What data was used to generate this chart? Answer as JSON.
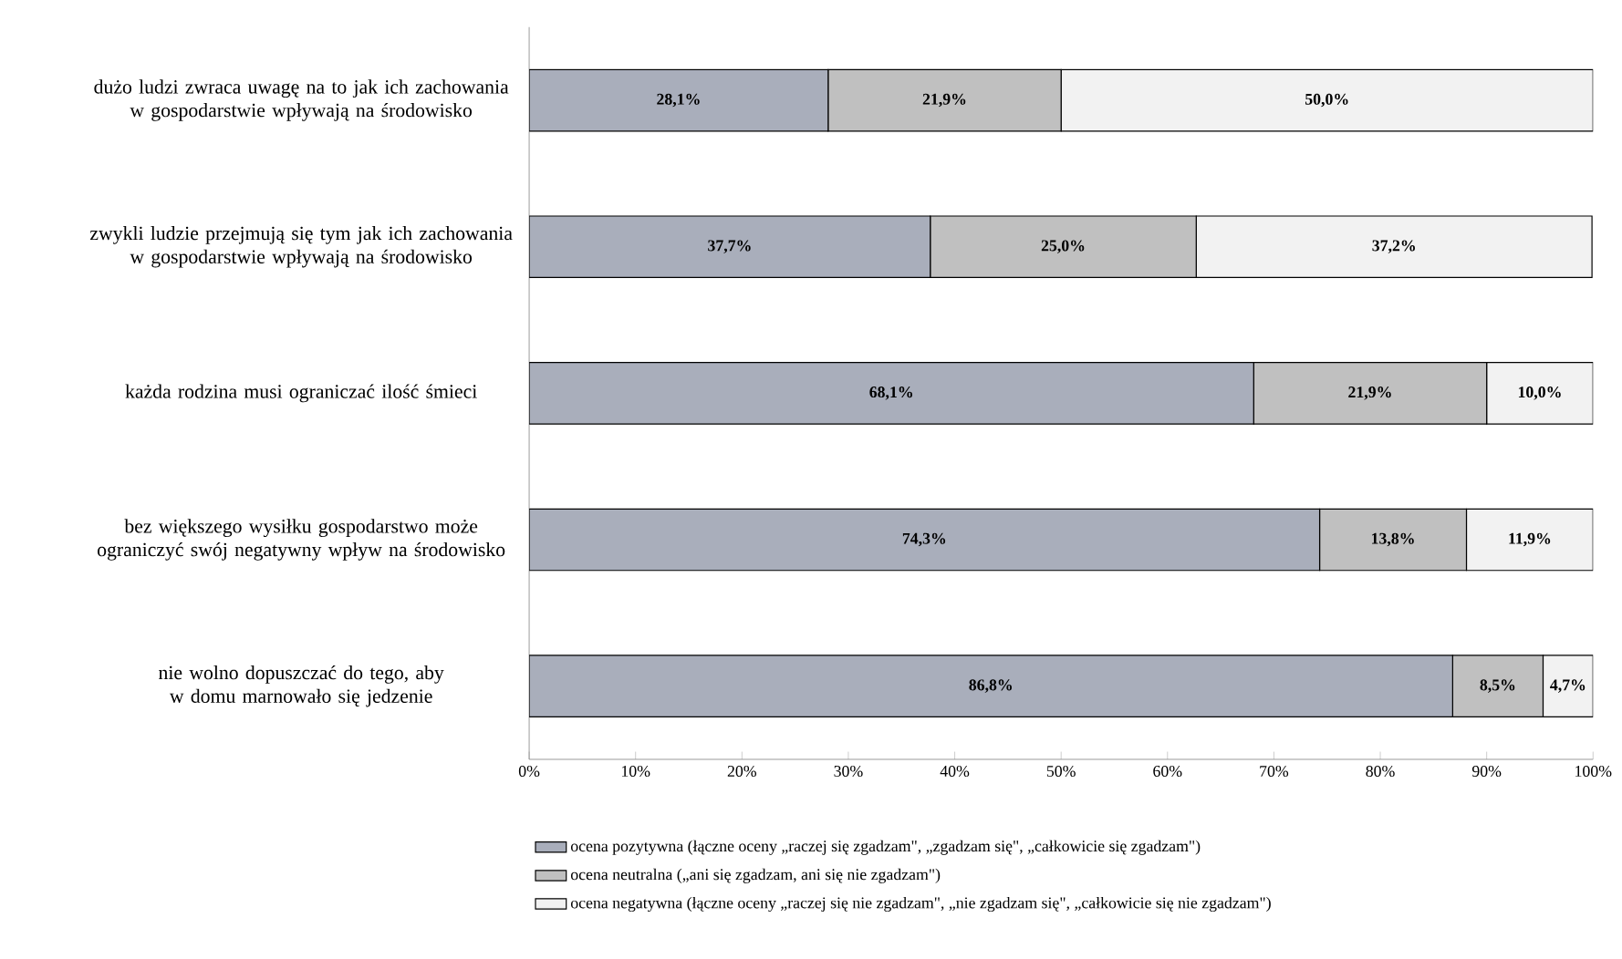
{
  "chart_data": {
    "type": "bar",
    "orientation": "horizontal",
    "stacked": true,
    "categories": [
      "dużo ludzi zwraca uwagę na to jak ich zachowania w gospodarstwie wpływają na środowisko",
      "zwykli ludzie przejmują się tym jak ich zachowania w gospodarstwie wpływają na środowisko",
      "każda rodzina musi ograniczać ilość śmieci",
      "bez większego wysiłku gospodarstwo może ograniczyć swój negatywny wpływ na środowisko",
      "nie wolno dopuszczać do tego, aby w domu marnowało się jedzenie"
    ],
    "series": [
      {
        "name": "ocena pozytywna (łączne oceny „raczej się zgadzam\", „zgadzam się\",  „całkowicie się zgadzam\")",
        "color": "#a9aebb",
        "values": [
          28.1,
          37.7,
          68.1,
          74.3,
          86.8
        ],
        "value_labels": [
          "28,1%",
          "37,7%",
          "68,1%",
          "74,3%",
          "86,8%"
        ]
      },
      {
        "name": "ocena neutralna („ani się zgadzam, ani się nie zgadzam\")",
        "color": "#c0c0c0",
        "values": [
          21.9,
          25.0,
          21.9,
          13.8,
          8.5
        ],
        "value_labels": [
          "21,9%",
          "25,0%",
          "21,9%",
          "13,8%",
          "8,5%"
        ]
      },
      {
        "name": "ocena negatywna (łączne oceny „raczej się nie zgadzam\", „nie zgadzam się\",  „całkowicie się nie zgadzam\")",
        "color": "#f2f2f2",
        "values": [
          50.0,
          37.2,
          10.0,
          11.9,
          4.7
        ],
        "value_labels": [
          "50,0%",
          "37,2%",
          "10,0%",
          "11,9%",
          "4,7%"
        ]
      }
    ],
    "xlim": [
      0,
      100
    ],
    "xticks": [
      {
        "value": 0,
        "label": "0%"
      },
      {
        "value": 10,
        "label": "10%"
      },
      {
        "value": 20,
        "label": "20%"
      },
      {
        "value": 30,
        "label": "30%"
      },
      {
        "value": 40,
        "label": "40%"
      },
      {
        "value": 50,
        "label": "50%"
      },
      {
        "value": 60,
        "label": "60%"
      },
      {
        "value": 70,
        "label": "70%"
      },
      {
        "value": 80,
        "label": "80%"
      },
      {
        "value": 90,
        "label": "90%"
      },
      {
        "value": 100,
        "label": "100%"
      }
    ],
    "legend": "bottom"
  }
}
